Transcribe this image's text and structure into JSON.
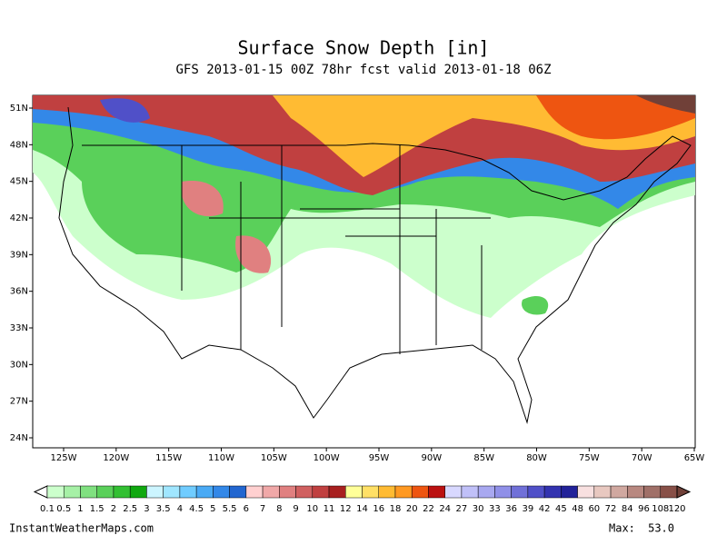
{
  "header": {
    "title": "Surface Snow Depth [in]",
    "subtitle": "GFS 2013-01-15 00Z 78hr fcst valid 2013-01-18 06Z"
  },
  "map": {
    "lat_labels": [
      "51N",
      "48N",
      "45N",
      "42N",
      "39N",
      "36N",
      "33N",
      "30N",
      "27N",
      "24N"
    ],
    "lon_labels": [
      "125W",
      "120W",
      "115W",
      "110W",
      "105W",
      "100W",
      "95W",
      "90W",
      "85W",
      "80W",
      "75W",
      "70W",
      "65W"
    ]
  },
  "legend": {
    "labels": [
      "0.1",
      "0.5",
      "1",
      "1.5",
      "2",
      "2.5",
      "3",
      "3.5",
      "4",
      "4.5",
      "5",
      "5.5",
      "6",
      "7",
      "8",
      "9",
      "10",
      "11",
      "12",
      "14",
      "16",
      "18",
      "20",
      "22",
      "24",
      "27",
      "30",
      "33",
      "36",
      "39",
      "42",
      "45",
      "48",
      "60",
      "72",
      "84",
      "96",
      "108",
      "120"
    ],
    "colors": [
      "#ffffff",
      "#ccffcc",
      "#a6f0a6",
      "#80e080",
      "#5ad05a",
      "#33c033",
      "#10a810",
      "#ccf5ff",
      "#a0e6ff",
      "#70ccff",
      "#4aaaf5",
      "#3388e8",
      "#2266d0",
      "#ffd0d0",
      "#f0a8a8",
      "#e08080",
      "#d06060",
      "#c04040",
      "#a82020",
      "#ffff99",
      "#ffe066",
      "#ffbb33",
      "#ff9922",
      "#ee5511",
      "#bb1111",
      "#d8d8ff",
      "#c0c0f8",
      "#a8a8f0",
      "#9090e8",
      "#7070d8",
      "#5050c8",
      "#3333b0",
      "#222299",
      "#f8e0e0",
      "#e8c8c0",
      "#d0a8a0",
      "#b88880",
      "#a07068",
      "#885048",
      "#704038"
    ]
  },
  "footer": {
    "site": "InstantWeatherMaps.com",
    "max_label": "Max:",
    "max_value": "53.0"
  }
}
